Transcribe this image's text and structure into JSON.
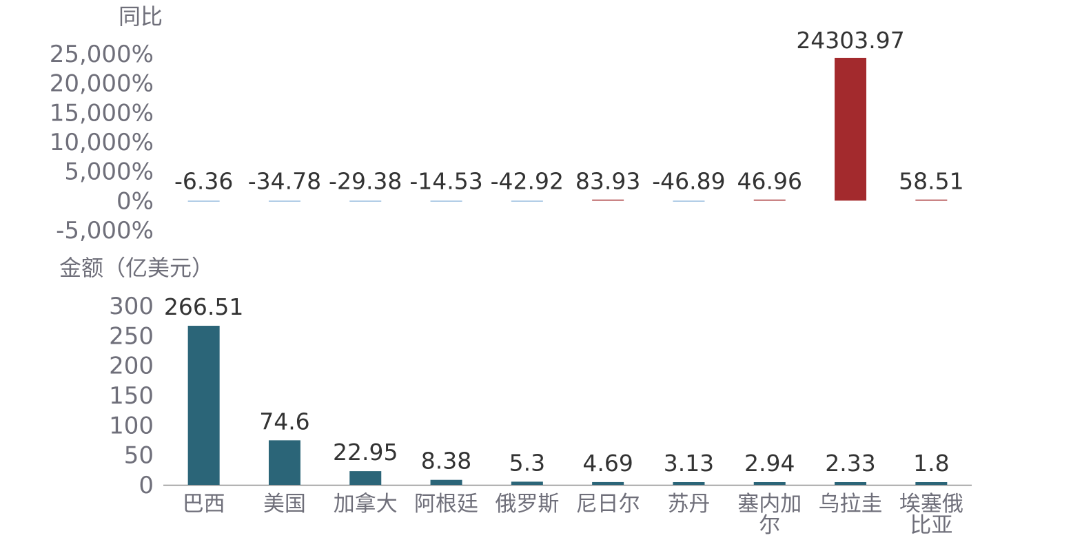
{
  "chart_data": [
    {
      "type": "bar",
      "ylabel": "同比",
      "yticks": [
        "25,000%",
        "20,000%",
        "15,000%",
        "10,000%",
        "5,000%",
        "0%",
        "-5,000%"
      ],
      "ylim": [
        -5000,
        25000
      ],
      "categories": [
        "巴西",
        "美国",
        "加拿大",
        "阿根廷",
        "俄罗斯",
        "尼日尔",
        "苏丹",
        "塞内加尔",
        "乌拉圭",
        "埃塞俄比亚"
      ],
      "values": [
        -6.36,
        -34.78,
        -29.38,
        -14.53,
        -42.92,
        83.93,
        -46.89,
        46.96,
        24303.97,
        58.51
      ],
      "labels": [
        "-6.36",
        "-34.78",
        "-29.38",
        "-14.53",
        "-42.92",
        "83.93",
        "-46.89",
        "46.96",
        "24303.97",
        "58.51"
      ],
      "colors": {
        "positive": "#a32a2d",
        "negative": "#9bbfe0"
      }
    },
    {
      "type": "bar",
      "ylabel": "金额（亿美元）",
      "yticks": [
        "300",
        "250",
        "200",
        "150",
        "100",
        "50",
        "0"
      ],
      "ylim": [
        0,
        300
      ],
      "categories": [
        "巴西",
        "美国",
        "加拿大",
        "阿根廷",
        "俄罗斯",
        "尼日尔",
        "苏丹",
        "塞内加尔",
        "乌拉圭",
        "埃塞俄比亚"
      ],
      "values": [
        266.51,
        74.6,
        22.95,
        8.38,
        5.3,
        4.69,
        3.13,
        2.94,
        2.33,
        1.8
      ],
      "labels": [
        "266.51",
        "74.6",
        "22.95",
        "8.38",
        "5.3",
        "4.69",
        "3.13",
        "2.94",
        "2.33",
        "1.8"
      ],
      "color": "#2b6578"
    }
  ],
  "categories_display": [
    [
      "巴西"
    ],
    [
      "美国"
    ],
    [
      "加拿大"
    ],
    [
      "阿根廷"
    ],
    [
      "俄罗斯"
    ],
    [
      "尼日尔"
    ],
    [
      "苏丹"
    ],
    [
      "塞内加",
      "尔"
    ],
    [
      "乌拉圭"
    ],
    [
      "埃塞俄",
      "比亚"
    ]
  ]
}
